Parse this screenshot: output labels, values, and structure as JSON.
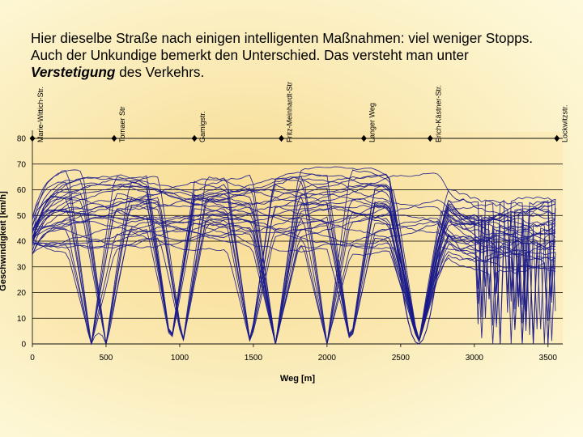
{
  "slide": {
    "text_part1": "Hier dieselbe Straße nach einigen intelligenten Maßnahmen: viel weniger Stopps. Auch der Unkundige bemerkt den Unterschied. Das versteht man unter ",
    "text_emphasis": "Verstetigung",
    "text_part2": " des Verkehrs."
  },
  "chart_data": {
    "type": "line",
    "xlabel": "Weg [m]",
    "ylabel": "Geschwindigkeit [km/h]",
    "xlim": [
      0,
      3600
    ],
    "ylim": [
      0,
      80
    ],
    "xticks": [
      0,
      500,
      1000,
      1500,
      2000,
      2500,
      3000,
      3500
    ],
    "yticks": [
      0,
      10,
      20,
      30,
      40,
      50,
      60,
      70,
      80
    ],
    "grid": "horizontal",
    "line_color": "#1a1a8a",
    "streets": [
      {
        "name": "Marie-Wittich-Str.",
        "x": 0
      },
      {
        "name": "Tornaer Str",
        "x": 555
      },
      {
        "name": "Gamigstr.",
        "x": 1100
      },
      {
        "name": "Fritz-Meinhardt-Str",
        "x": 1690
      },
      {
        "name": "Langer Weg",
        "x": 2250
      },
      {
        "name": "Erich-Kästner-Str.",
        "x": 2700
      },
      {
        "name": "Lockwitzstr.",
        "x": 3560
      }
    ],
    "typical_speed_range": [
      40,
      65
    ],
    "stop_locations_m": [
      400,
      500,
      940,
      1020,
      1480,
      1650,
      2000,
      2160,
      2620
    ]
  }
}
